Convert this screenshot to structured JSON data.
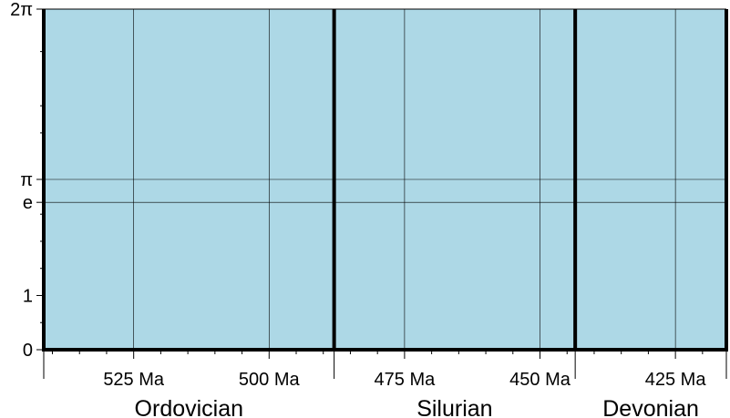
{
  "chart_data": {
    "type": "custom-axes",
    "title": "",
    "xlabel": "",
    "ylabel": "",
    "background_color": "#add8e6",
    "x_axis": {
      "reversed": true,
      "xlim": [
        541.6,
        415.6
      ],
      "major_ticks": [
        {
          "value": 525,
          "label": "525 Ma"
        },
        {
          "value": 500,
          "label": "500 Ma"
        },
        {
          "value": 475,
          "label": "475 Ma"
        },
        {
          "value": 450,
          "label": "450 Ma"
        },
        {
          "value": 425,
          "label": "425 Ma"
        }
      ],
      "minor_tick_step": 5,
      "gridlines": [
        525,
        500,
        475,
        450,
        425
      ],
      "period_boundaries": [
        488,
        443.5
      ],
      "periods": [
        {
          "name": "Ordovician",
          "start": 541.6,
          "end": 488
        },
        {
          "name": "Silurian",
          "start": 488,
          "end": 443.5
        },
        {
          "name": "Devonian",
          "start": 443.5,
          "end": 415.6
        }
      ]
    },
    "y_axis": {
      "scale": "custom",
      "ylim": [
        0,
        6.2832
      ],
      "ticks": [
        {
          "value": 0,
          "label": "0"
        },
        {
          "value": 1,
          "label": "1"
        },
        {
          "value": 2.71828,
          "label": "e"
        },
        {
          "value": 3.14159,
          "label": "π"
        },
        {
          "value": 6.28319,
          "label": "2π"
        }
      ],
      "gridlines": [
        2.71828,
        3.14159
      ],
      "minor_ticks": [
        0.5,
        1.5,
        2.0,
        2.5,
        4.0,
        4.5,
        5.5
      ]
    },
    "grid": true
  }
}
